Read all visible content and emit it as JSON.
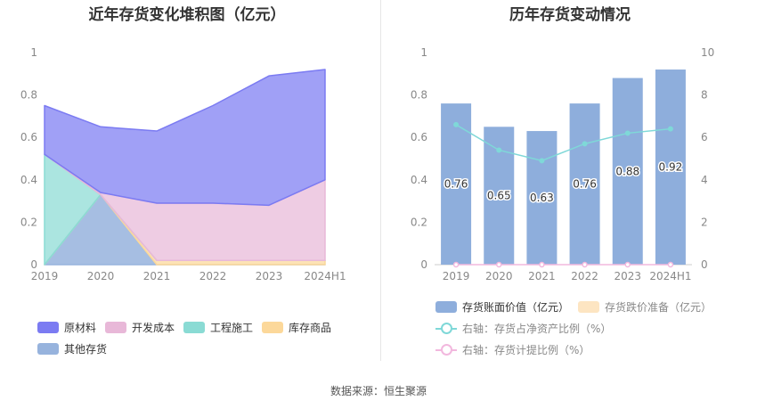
{
  "left_chart": {
    "title": "近年存货变化堆积图（亿元）"
  },
  "right_chart": {
    "title": "历年存货变动情况"
  },
  "source": "数据来源：恒生聚源",
  "colors": {
    "raw": "#7b7bf2",
    "wip": "#e8b8d8",
    "construction": "#8adbd4",
    "goods": "#fcd89a",
    "other": "#97b3dd",
    "bar": "#8eaedc",
    "reserve": "#fde5c2",
    "ratio_line": "#7fd8d8",
    "provision_line": "#f2b8de"
  },
  "chart_data": [
    {
      "type": "area",
      "title": "近年存货变化堆积图（亿元）",
      "categories": [
        "2019",
        "2020",
        "2021",
        "2022",
        "2023",
        "2024H1"
      ],
      "ylim": [
        0,
        1
      ],
      "yticks": [
        "0",
        "0.2",
        "0.4",
        "0.6",
        "0.8",
        "1"
      ],
      "stacked": true,
      "series": [
        {
          "name": "其他存货",
          "values": [
            0.0,
            0.33,
            0.0,
            0.0,
            0.0,
            0.0
          ]
        },
        {
          "name": "库存商品",
          "values": [
            0.0,
            0.0,
            0.02,
            0.02,
            0.02,
            0.02
          ]
        },
        {
          "name": "工程施工",
          "values": [
            0.52,
            0.0,
            0.0,
            0.0,
            0.0,
            0.0
          ]
        },
        {
          "name": "开发成本",
          "values": [
            0.0,
            0.01,
            0.27,
            0.27,
            0.26,
            0.38
          ]
        },
        {
          "name": "原材料",
          "values": [
            0.23,
            0.31,
            0.34,
            0.46,
            0.61,
            0.52
          ]
        }
      ],
      "legend": [
        "原材料",
        "开发成本",
        "工程施工",
        "库存商品",
        "其他存货"
      ],
      "legend_position": "bottom",
      "grid": false
    },
    {
      "type": "bar",
      "title": "历年存货变动情况",
      "categories": [
        "2019",
        "2020",
        "2021",
        "2022",
        "2023",
        "2024H1"
      ],
      "ylim": [
        0,
        1
      ],
      "yticks": [
        "0",
        "0.2",
        "0.4",
        "0.6",
        "0.8",
        "1"
      ],
      "y2lim": [
        0,
        10
      ],
      "y2ticks": [
        "0",
        "2",
        "4",
        "6",
        "8",
        "10"
      ],
      "series": [
        {
          "name": "存货账面价值（亿元）",
          "values": [
            0.76,
            0.65,
            0.63,
            0.76,
            0.88,
            0.92
          ],
          "labels": [
            "0.76",
            "0.65",
            "0.63",
            "0.76",
            "0.88",
            "0.92"
          ]
        },
        {
          "name": "存货跌价准备（亿元）",
          "values": [
            0,
            0,
            0,
            0,
            0,
            0
          ]
        },
        {
          "name": "右轴：存货占净资产比例（%）",
          "axis": "right",
          "type": "line",
          "values": [
            6.6,
            5.4,
            4.9,
            5.7,
            6.2,
            6.4
          ]
        },
        {
          "name": "右轴：存货计提比例（%）",
          "axis": "right",
          "type": "line",
          "values": [
            0,
            0,
            0,
            0,
            0,
            0
          ]
        }
      ],
      "legend_position": "bottom",
      "grid": false
    }
  ]
}
